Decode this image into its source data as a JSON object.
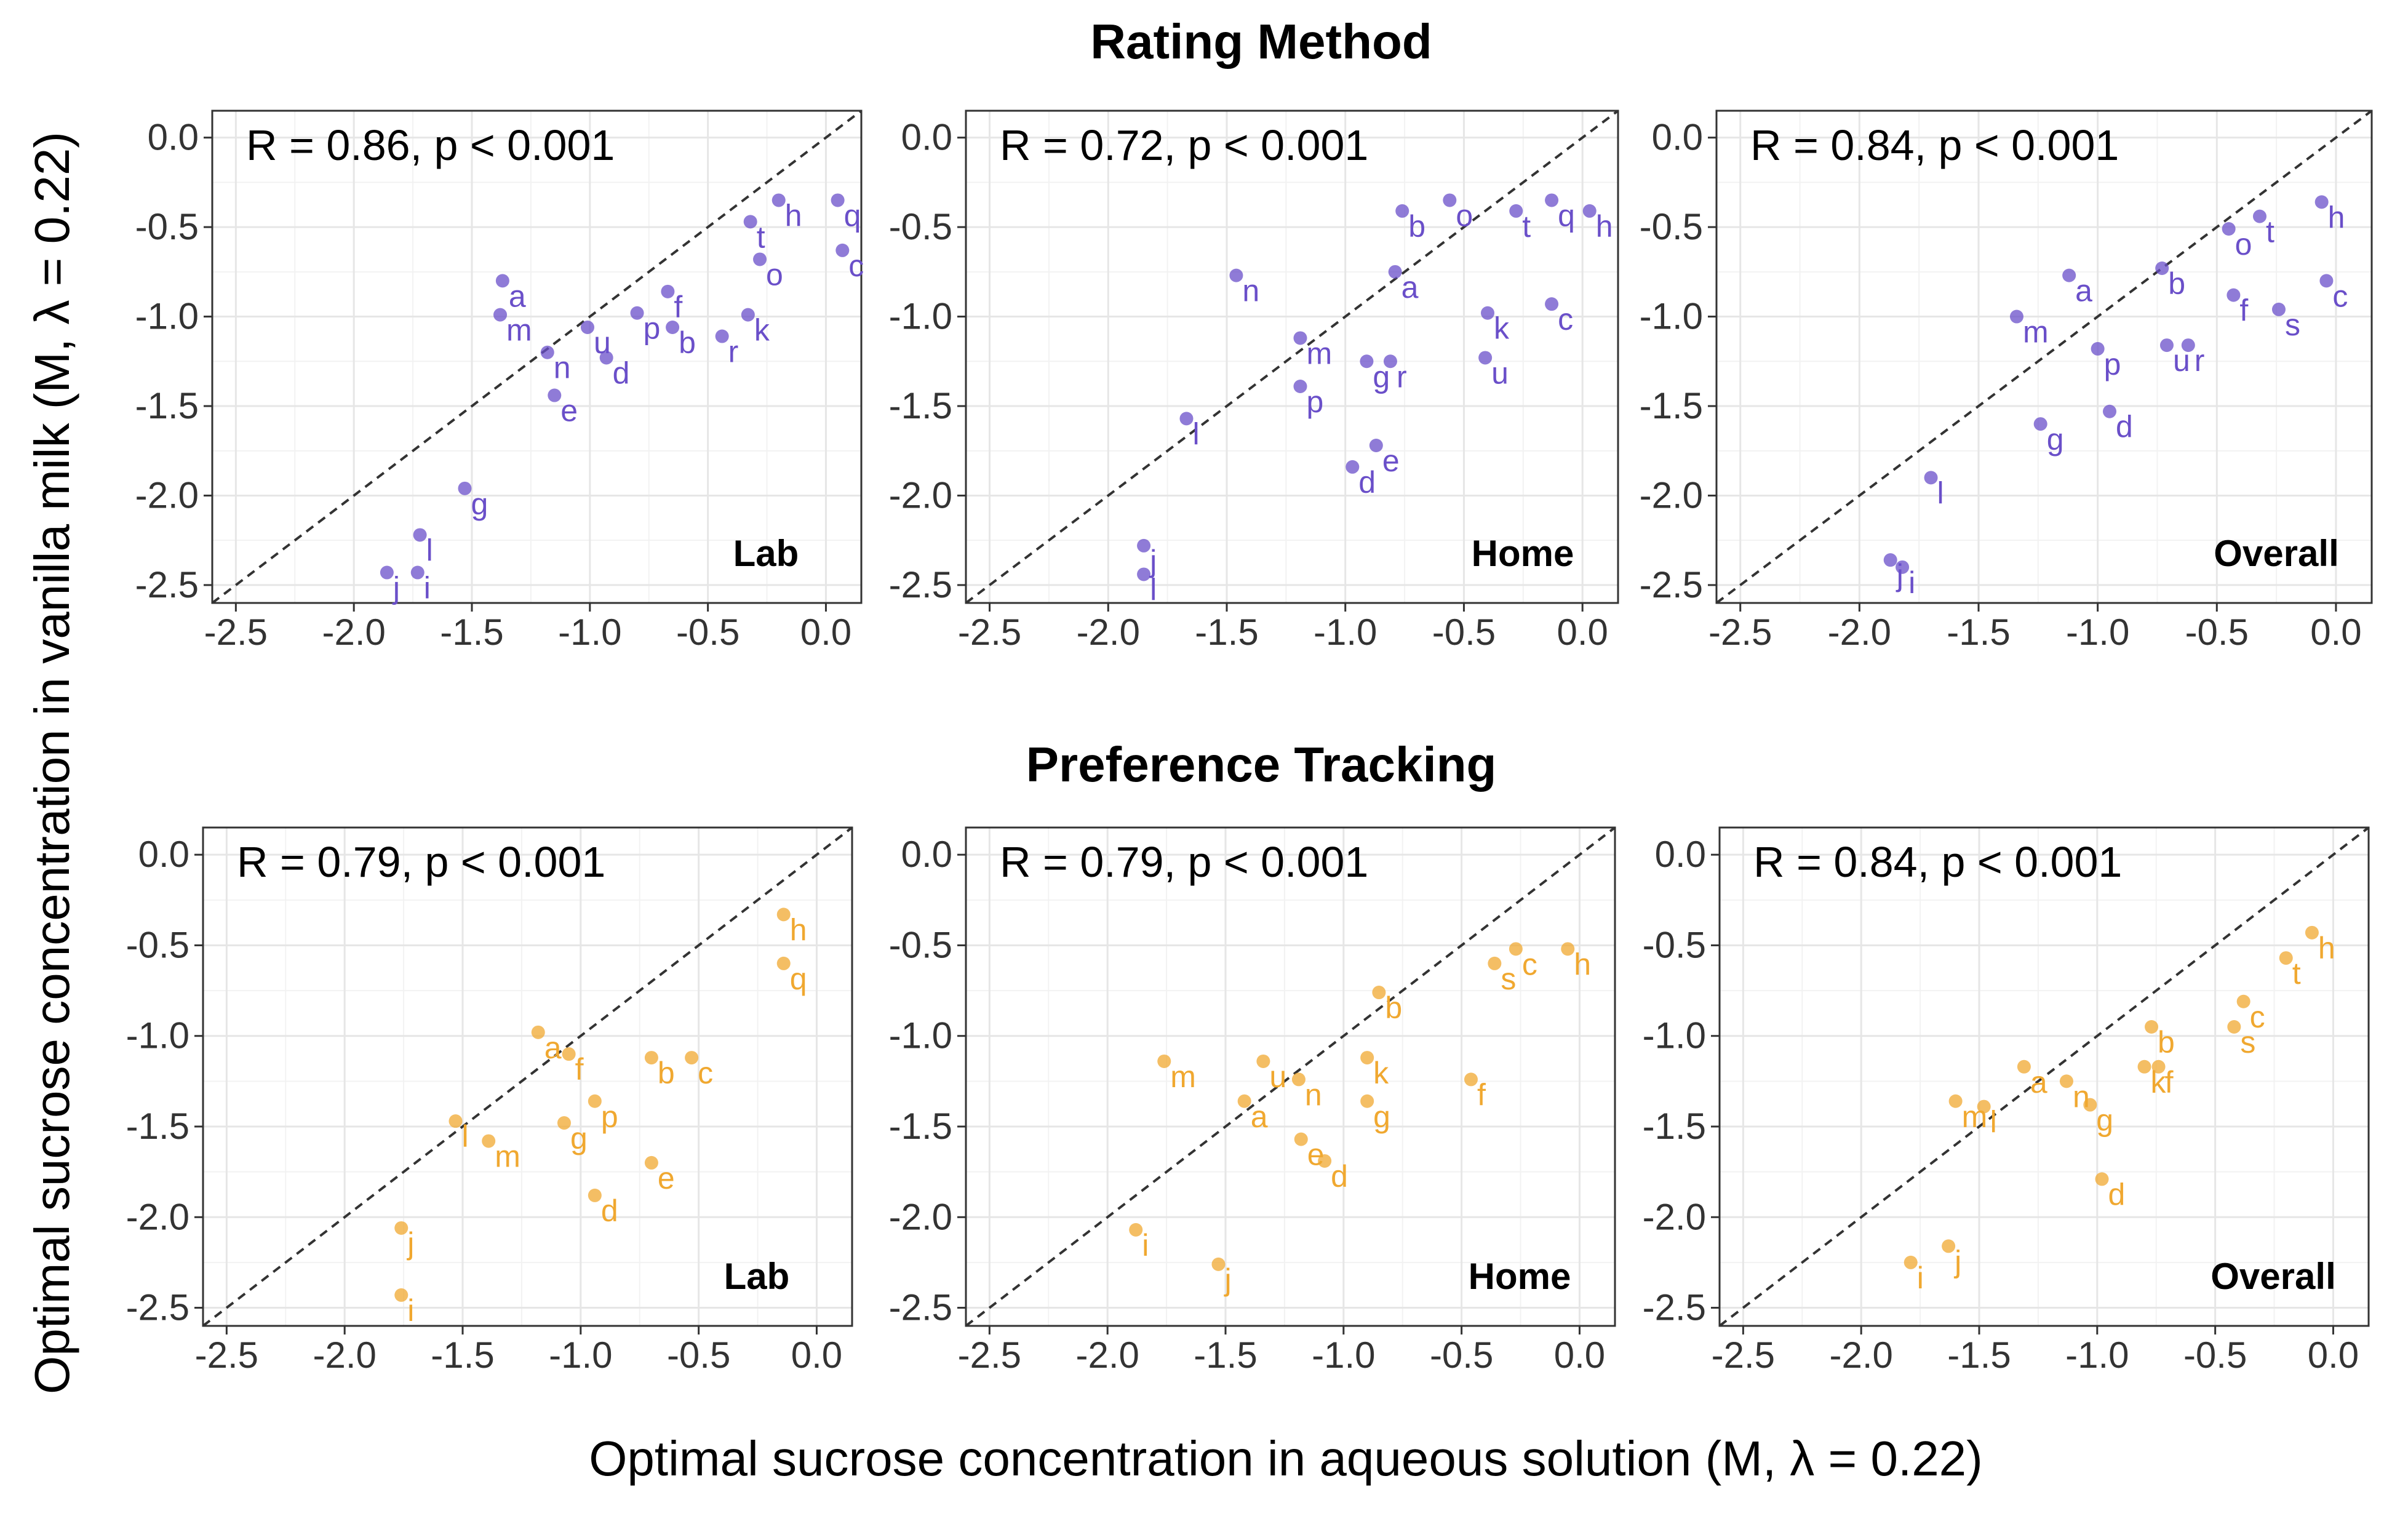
{
  "figure": {
    "row_titles": [
      "Rating Method",
      "Preference Tracking"
    ],
    "xlabel": "Optimal sucrose concentration in aqueous solution (M, λ = 0.22)",
    "ylabel": "Optimal sucrose concentration in vanilla milk (M, λ = 0.22)"
  },
  "colors": {
    "rating": "#6a4fc9",
    "preference": "#f0a830"
  },
  "chart_data": [
    {
      "type": "scatter",
      "row": "Rating Method",
      "panel": "Lab",
      "stat": "R = 0.86, p < 0.001",
      "color_key": "rating",
      "xlim": [
        -2.6,
        0.15
      ],
      "ylim": [
        -2.6,
        0.15
      ],
      "xticks": [
        -2.5,
        -2.0,
        -1.5,
        -1.0,
        -0.5,
        0.0
      ],
      "yticks": [
        0.0,
        -0.5,
        -1.0,
        -1.5,
        -2.0,
        -2.5
      ],
      "points": [
        {
          "label": "h",
          "x": -0.2,
          "y": -0.35
        },
        {
          "label": "q",
          "x": 0.05,
          "y": -0.35
        },
        {
          "label": "t",
          "x": -0.32,
          "y": -0.47
        },
        {
          "label": "o",
          "x": -0.28,
          "y": -0.68
        },
        {
          "label": "c",
          "x": 0.07,
          "y": -0.63
        },
        {
          "label": "a",
          "x": -1.37,
          "y": -0.8
        },
        {
          "label": "f",
          "x": -0.67,
          "y": -0.86
        },
        {
          "label": "m",
          "x": -1.38,
          "y": -0.99
        },
        {
          "label": "p",
          "x": -0.8,
          "y": -0.98
        },
        {
          "label": "k",
          "x": -0.33,
          "y": -0.99
        },
        {
          "label": "u",
          "x": -1.01,
          "y": -1.06
        },
        {
          "label": "b",
          "x": -0.65,
          "y": -1.06
        },
        {
          "label": "r",
          "x": -0.44,
          "y": -1.11
        },
        {
          "label": "n",
          "x": -1.18,
          "y": -1.2
        },
        {
          "label": "d",
          "x": -0.93,
          "y": -1.23
        },
        {
          "label": "e",
          "x": -1.15,
          "y": -1.44
        },
        {
          "label": "g",
          "x": -1.53,
          "y": -1.96
        },
        {
          "label": "l",
          "x": -1.72,
          "y": -2.22
        },
        {
          "label": "j",
          "x": -1.86,
          "y": -2.43
        },
        {
          "label": "i",
          "x": -1.73,
          "y": -2.43
        }
      ]
    },
    {
      "type": "scatter",
      "row": "Rating Method",
      "panel": "Home",
      "stat": "R = 0.72, p < 0.001",
      "color_key": "rating",
      "xlim": [
        -2.6,
        0.15
      ],
      "ylim": [
        -2.6,
        0.15
      ],
      "xticks": [
        -2.5,
        -2.0,
        -1.5,
        -1.0,
        -0.5,
        0.0
      ],
      "yticks": [
        0.0,
        -0.5,
        -1.0,
        -1.5,
        -2.0,
        -2.5
      ],
      "points": [
        {
          "label": "o",
          "x": -0.56,
          "y": -0.35
        },
        {
          "label": "q",
          "x": -0.13,
          "y": -0.35
        },
        {
          "label": "b",
          "x": -0.76,
          "y": -0.41
        },
        {
          "label": "t",
          "x": -0.28,
          "y": -0.41
        },
        {
          "label": "h",
          "x": 0.03,
          "y": -0.41
        },
        {
          "label": "n",
          "x": -1.46,
          "y": -0.77
        },
        {
          "label": "a",
          "x": -0.79,
          "y": -0.75
        },
        {
          "label": "c",
          "x": -0.13,
          "y": -0.93
        },
        {
          "label": "k",
          "x": -0.4,
          "y": -0.98
        },
        {
          "label": "m",
          "x": -1.19,
          "y": -1.12
        },
        {
          "label": "g",
          "x": -0.91,
          "y": -1.25
        },
        {
          "label": "r",
          "x": -0.81,
          "y": -1.25
        },
        {
          "label": "u",
          "x": -0.41,
          "y": -1.23
        },
        {
          "label": "p",
          "x": -1.19,
          "y": -1.39
        },
        {
          "label": "l",
          "x": -1.67,
          "y": -1.57
        },
        {
          "label": "e",
          "x": -0.87,
          "y": -1.72
        },
        {
          "label": "d",
          "x": -0.97,
          "y": -1.84
        },
        {
          "label": "j",
          "x": -1.85,
          "y": -2.28
        },
        {
          "label": "l",
          "x": -1.85,
          "y": -2.44
        }
      ]
    },
    {
      "type": "scatter",
      "row": "Rating Method",
      "panel": "Overall",
      "stat": "R = 0.84, p < 0.001",
      "color_key": "rating",
      "xlim": [
        -2.6,
        0.15
      ],
      "ylim": [
        -2.6,
        0.15
      ],
      "xticks": [
        -2.5,
        -2.0,
        -1.5,
        -1.0,
        -0.5,
        0.0
      ],
      "yticks": [
        0.0,
        -0.5,
        -1.0,
        -1.5,
        -2.0,
        -2.5
      ],
      "points": [
        {
          "label": "h",
          "x": -0.06,
          "y": -0.36
        },
        {
          "label": "t",
          "x": -0.32,
          "y": -0.44
        },
        {
          "label": "o",
          "x": -0.45,
          "y": -0.51
        },
        {
          "label": "b",
          "x": -0.73,
          "y": -0.73
        },
        {
          "label": "c",
          "x": -0.04,
          "y": -0.8
        },
        {
          "label": "a",
          "x": -1.12,
          "y": -0.77
        },
        {
          "label": "f",
          "x": -0.43,
          "y": -0.88
        },
        {
          "label": "s",
          "x": -0.24,
          "y": -0.96
        },
        {
          "label": "m",
          "x": -1.34,
          "y": -1.0
        },
        {
          "label": "p",
          "x": -1.0,
          "y": -1.18
        },
        {
          "label": "u",
          "x": -0.71,
          "y": -1.16
        },
        {
          "label": "r",
          "x": -0.62,
          "y": -1.16
        },
        {
          "label": "d",
          "x": -0.95,
          "y": -1.53
        },
        {
          "label": "g",
          "x": -1.24,
          "y": -1.6
        },
        {
          "label": "l",
          "x": -1.7,
          "y": -1.9
        },
        {
          "label": "j",
          "x": -1.87,
          "y": -2.36
        },
        {
          "label": "i",
          "x": -1.82,
          "y": -2.4
        }
      ]
    },
    {
      "type": "scatter",
      "row": "Preference Tracking",
      "panel": "Lab",
      "stat": "R = 0.79, p < 0.001",
      "color_key": "preference",
      "xlim": [
        -2.6,
        0.15
      ],
      "ylim": [
        -2.6,
        0.15
      ],
      "xticks": [
        -2.5,
        -2.0,
        -1.5,
        -1.0,
        -0.5,
        0.0
      ],
      "yticks": [
        0.0,
        -0.5,
        -1.0,
        -1.5,
        -2.0,
        -2.5
      ],
      "points": [
        {
          "label": "h",
          "x": -0.14,
          "y": -0.33
        },
        {
          "label": "q",
          "x": -0.14,
          "y": -0.6
        },
        {
          "label": "a",
          "x": -1.18,
          "y": -0.98
        },
        {
          "label": "f",
          "x": -1.05,
          "y": -1.1
        },
        {
          "label": "b",
          "x": -0.7,
          "y": -1.12
        },
        {
          "label": "c",
          "x": -0.53,
          "y": -1.12
        },
        {
          "label": "p",
          "x": -0.94,
          "y": -1.36
        },
        {
          "label": "g",
          "x": -1.07,
          "y": -1.48
        },
        {
          "label": "l",
          "x": -1.53,
          "y": -1.47
        },
        {
          "label": "m",
          "x": -1.39,
          "y": -1.58
        },
        {
          "label": "e",
          "x": -0.7,
          "y": -1.7
        },
        {
          "label": "d",
          "x": -0.94,
          "y": -1.88
        },
        {
          "label": "j",
          "x": -1.76,
          "y": -2.06
        },
        {
          "label": "i",
          "x": -1.76,
          "y": -2.43
        }
      ]
    },
    {
      "type": "scatter",
      "row": "Preference Tracking",
      "panel": "Home",
      "stat": "R = 0.79,  p < 0.001",
      "color_key": "preference",
      "xlim": [
        -2.6,
        0.15
      ],
      "ylim": [
        -2.6,
        0.15
      ],
      "xticks": [
        -2.5,
        -2.0,
        -1.5,
        -1.0,
        -0.5,
        0.0
      ],
      "yticks": [
        0.0,
        -0.5,
        -1.0,
        -1.5,
        -2.0,
        -2.5
      ],
      "points": [
        {
          "label": "c",
          "x": -0.27,
          "y": -0.52
        },
        {
          "label": "h",
          "x": -0.05,
          "y": -0.52
        },
        {
          "label": "s",
          "x": -0.36,
          "y": -0.6
        },
        {
          "label": "b",
          "x": -0.85,
          "y": -0.76
        },
        {
          "label": "m",
          "x": -1.76,
          "y": -1.14
        },
        {
          "label": "u",
          "x": -1.34,
          "y": -1.14
        },
        {
          "label": "k",
          "x": -0.9,
          "y": -1.12
        },
        {
          "label": "n",
          "x": -1.19,
          "y": -1.24
        },
        {
          "label": "f",
          "x": -0.46,
          "y": -1.24
        },
        {
          "label": "a",
          "x": -1.42,
          "y": -1.36
        },
        {
          "label": "g",
          "x": -0.9,
          "y": -1.36
        },
        {
          "label": "e",
          "x": -1.18,
          "y": -1.57
        },
        {
          "label": "d",
          "x": -1.08,
          "y": -1.69
        },
        {
          "label": "i",
          "x": -1.88,
          "y": -2.07
        },
        {
          "label": "j",
          "x": -1.53,
          "y": -2.26
        }
      ]
    },
    {
      "type": "scatter",
      "row": "Preference Tracking",
      "panel": "Overall",
      "stat": "R = 0.84, p < 0.001",
      "color_key": "preference",
      "xlim": [
        -2.6,
        0.15
      ],
      "ylim": [
        -2.6,
        0.15
      ],
      "xticks": [
        -2.5,
        -2.0,
        -1.5,
        -1.0,
        -0.5,
        0.0
      ],
      "yticks": [
        0.0,
        -0.5,
        -1.0,
        -1.5,
        -2.0,
        -2.5
      ],
      "points": [
        {
          "label": "h",
          "x": -0.09,
          "y": -0.43
        },
        {
          "label": "t",
          "x": -0.2,
          "y": -0.57
        },
        {
          "label": "c",
          "x": -0.38,
          "y": -0.81
        },
        {
          "label": "b",
          "x": -0.77,
          "y": -0.95
        },
        {
          "label": "s",
          "x": -0.42,
          "y": -0.95
        },
        {
          "label": "a",
          "x": -1.31,
          "y": -1.17
        },
        {
          "label": "k",
          "x": -0.8,
          "y": -1.17
        },
        {
          "label": "f",
          "x": -0.74,
          "y": -1.17
        },
        {
          "label": "n",
          "x": -1.13,
          "y": -1.25
        },
        {
          "label": "g",
          "x": -1.03,
          "y": -1.38
        },
        {
          "label": "m",
          "x": -1.6,
          "y": -1.36
        },
        {
          "label": "l",
          "x": -1.48,
          "y": -1.39
        },
        {
          "label": "d",
          "x": -0.98,
          "y": -1.79
        },
        {
          "label": "j",
          "x": -1.63,
          "y": -2.16
        },
        {
          "label": "i",
          "x": -1.79,
          "y": -2.25
        }
      ]
    }
  ]
}
